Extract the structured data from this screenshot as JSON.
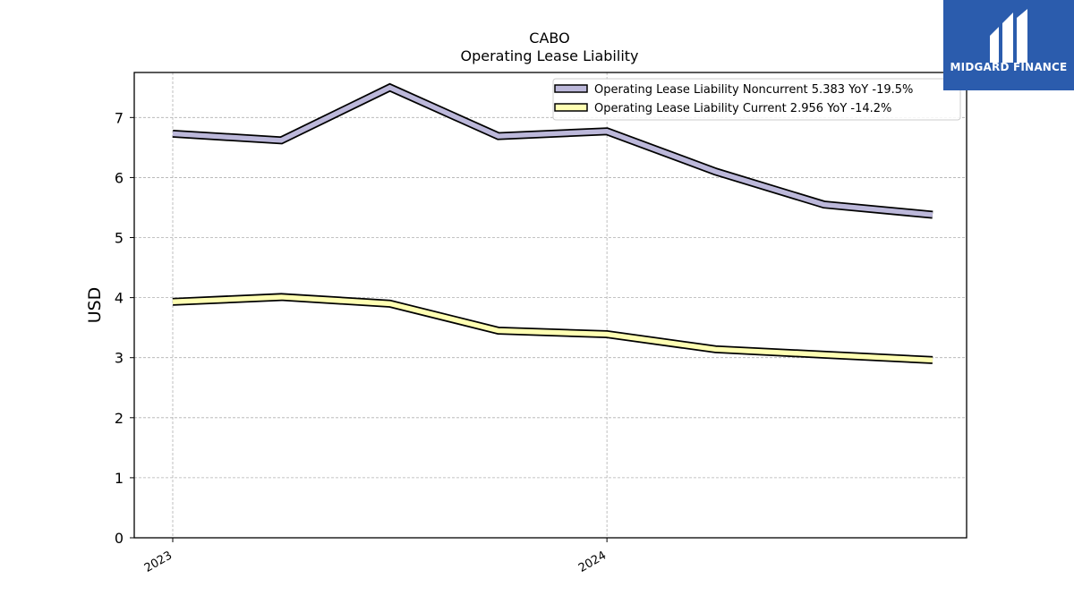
{
  "logo": {
    "text": "MIDGARD FINANCE",
    "bg": "#2b5cad"
  },
  "chart_data": {
    "type": "line",
    "title": "CABO",
    "subtitle": "Operating Lease Liability",
    "ylabel": "USD",
    "xlabel": "",
    "ylim": [
      0,
      7.75
    ],
    "yticks": [
      0,
      1,
      2,
      3,
      4,
      5,
      6,
      7
    ],
    "x": [
      "2023-01",
      "2023-04",
      "2023-07",
      "2023-10",
      "2024-01",
      "2024-04",
      "2024-07",
      "2024-10"
    ],
    "xtick_labels": [
      "2023",
      "2024"
    ],
    "xtick_positions": [
      "2023-01",
      "2024-01"
    ],
    "grid": true,
    "legend_position": "top-right",
    "series": [
      {
        "name": "Operating Lease Liability Noncurrent  5.383 YoY -19.5%",
        "color": "#bcb8da",
        "values": [
          6.73,
          6.62,
          7.5,
          6.69,
          6.77,
          6.1,
          5.55,
          5.38
        ]
      },
      {
        "name": "Operating Lease Liability Current  2.956 YoY -14.2%",
        "color": "#ffffb3",
        "values": [
          3.93,
          4.01,
          3.9,
          3.45,
          3.39,
          3.14,
          3.05,
          2.96
        ]
      }
    ]
  }
}
